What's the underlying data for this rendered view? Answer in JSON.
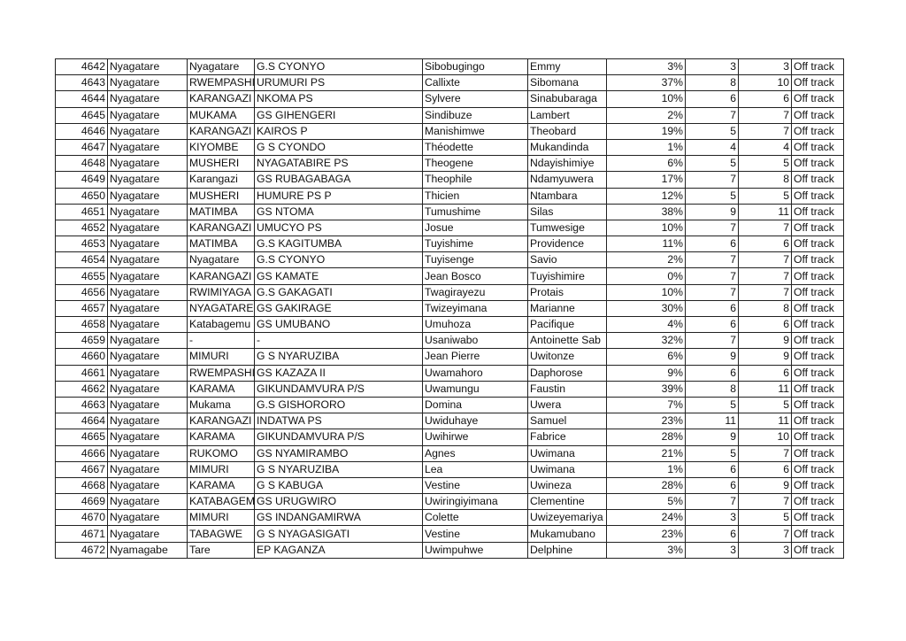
{
  "rows": [
    [
      "4642",
      "Nyagatare",
      "Nyagatare",
      "G.S CYONYO",
      "Sibobugingo",
      "Emmy",
      "3%",
      "3",
      "3",
      "Off track"
    ],
    [
      "4643",
      "Nyagatare",
      "RWEMPASHI",
      "URUMURI PS",
      "Callixte",
      "Sibomana",
      "37%",
      "8",
      "10",
      "Off track"
    ],
    [
      "4644",
      "Nyagatare",
      "KARANGAZI",
      "NKOMA PS",
      "Sylvere",
      "Sinabubaraga",
      "10%",
      "6",
      "6",
      "Off track"
    ],
    [
      "4645",
      "Nyagatare",
      "MUKAMA",
      "GS GIHENGERI",
      "Sindibuze",
      "Lambert",
      "2%",
      "7",
      "7",
      "Off track"
    ],
    [
      "4646",
      "Nyagatare",
      "KARANGAZI",
      "KAIROS P",
      "Manishimwe",
      "Theobard",
      "19%",
      "5",
      "7",
      "Off track"
    ],
    [
      "4647",
      "Nyagatare",
      "KIYOMBE",
      "G S CYONDO",
      "Théodette",
      "Mukandinda",
      "1%",
      "4",
      "4",
      "Off track"
    ],
    [
      "4648",
      "Nyagatare",
      "MUSHERI",
      "NYAGATABIRE PS",
      "Theogene",
      "Ndayishimiye",
      "6%",
      "5",
      "5",
      "Off track"
    ],
    [
      "4649",
      "Nyagatare",
      "Karangazi",
      "GS RUBAGABAGA",
      "Theophile",
      "Ndamyuwera",
      "17%",
      "7",
      "8",
      "Off track"
    ],
    [
      "4650",
      "Nyagatare",
      "MUSHERI",
      "HUMURE PS P",
      "Thicien",
      "Ntambara",
      "12%",
      "5",
      "5",
      "Off track"
    ],
    [
      "4651",
      "Nyagatare",
      "MATIMBA",
      "GS NTOMA",
      "Tumushime",
      "Silas",
      "38%",
      "9",
      "11",
      "Off track"
    ],
    [
      "4652",
      "Nyagatare",
      "KARANGAZI",
      "UMUCYO PS",
      "Josue",
      "Tumwesige",
      "10%",
      "7",
      "7",
      "Off track"
    ],
    [
      "4653",
      "Nyagatare",
      "MATIMBA",
      "G.S KAGITUMBA",
      "Tuyishime",
      "Providence",
      "11%",
      "6",
      "6",
      "Off track"
    ],
    [
      "4654",
      "Nyagatare",
      "Nyagatare",
      "G.S CYONYO",
      "Tuyisenge",
      "Savio",
      "2%",
      "7",
      "7",
      "Off track"
    ],
    [
      "4655",
      "Nyagatare",
      "KARANGAZI",
      "GS KAMATE",
      "Jean Bosco",
      "Tuyishimire",
      "0%",
      "7",
      "7",
      "Off track"
    ],
    [
      "4656",
      "Nyagatare",
      "RWIMIYAGA",
      "G.S GAKAGATI",
      "Twagirayezu",
      "Protais",
      "10%",
      "7",
      "7",
      "Off track"
    ],
    [
      "4657",
      "Nyagatare",
      "NYAGATARE",
      "GS GAKIRAGE",
      "Twizeyimana",
      "Marianne",
      "30%",
      "6",
      "8",
      "Off track"
    ],
    [
      "4658",
      "Nyagatare",
      "Katabagemu",
      "GS UMUBANO",
      "Umuhoza",
      "Pacifique",
      "4%",
      "6",
      "6",
      "Off track"
    ],
    [
      "4659",
      "Nyagatare",
      "-",
      "-",
      "Usaniwabo",
      "Antoinette Sab",
      "32%",
      "7",
      "9",
      "Off track"
    ],
    [
      "4660",
      "Nyagatare",
      "MIMURI",
      "G S NYARUZIBA",
      "Jean Pierre",
      "Uwitonze",
      "6%",
      "9",
      "9",
      "Off track"
    ],
    [
      "4661",
      "Nyagatare",
      "RWEMPASHI",
      "GS KAZAZA II",
      "Uwamahoro",
      "Daphorose",
      "9%",
      "6",
      "6",
      "Off track"
    ],
    [
      "4662",
      "Nyagatare",
      "KARAMA",
      "GIKUNDAMVURA P/S",
      "Uwamungu",
      "Faustin",
      "39%",
      "8",
      "11",
      "Off track"
    ],
    [
      "4663",
      "Nyagatare",
      "Mukama",
      "G.S GISHORORO",
      "Domina",
      "Uwera",
      "7%",
      "5",
      "5",
      "Off track"
    ],
    [
      "4664",
      "Nyagatare",
      "KARANGAZI",
      "INDATWA PS",
      "Uwiduhaye",
      "Samuel",
      "23%",
      "11",
      "11",
      "Off track"
    ],
    [
      "4665",
      "Nyagatare",
      "KARAMA",
      "GIKUNDAMVURA P/S",
      "Uwihirwe",
      "Fabrice",
      "28%",
      "9",
      "10",
      "Off track"
    ],
    [
      "4666",
      "Nyagatare",
      "RUKOMO",
      "GS NYAMIRAMBO",
      "Agnes",
      "Uwimana",
      "21%",
      "5",
      "7",
      "Off track"
    ],
    [
      "4667",
      "Nyagatare",
      "MIMURI",
      "G S NYARUZIBA",
      "Lea",
      "Uwimana",
      "1%",
      "6",
      "6",
      "Off track"
    ],
    [
      "4668",
      "Nyagatare",
      "KARAMA",
      "G S KABUGA",
      "Vestine",
      "Uwineza",
      "28%",
      "6",
      "9",
      "Off track"
    ],
    [
      "4669",
      "Nyagatare",
      "KATABAGEMU",
      "GS URUGWIRO",
      "Uwiringiyimana",
      "Clementine",
      "5%",
      "7",
      "7",
      "Off track"
    ],
    [
      "4670",
      "Nyagatare",
      "MIMURI",
      "GS INDANGAMIRWA",
      "Colette",
      "Uwizeyemariya",
      "24%",
      "3",
      "5",
      "Off track"
    ],
    [
      "4671",
      "Nyagatare",
      "TABAGWE",
      "G S NYAGASIGATI",
      "Vestine",
      "Mukamubano",
      "23%",
      "6",
      "7",
      "Off track"
    ],
    [
      "4672",
      "Nyamagabe",
      "Tare",
      "EP KAGANZA",
      "Uwimpuhwe",
      "Delphine",
      "3%",
      "3",
      "3",
      "Off track"
    ]
  ]
}
